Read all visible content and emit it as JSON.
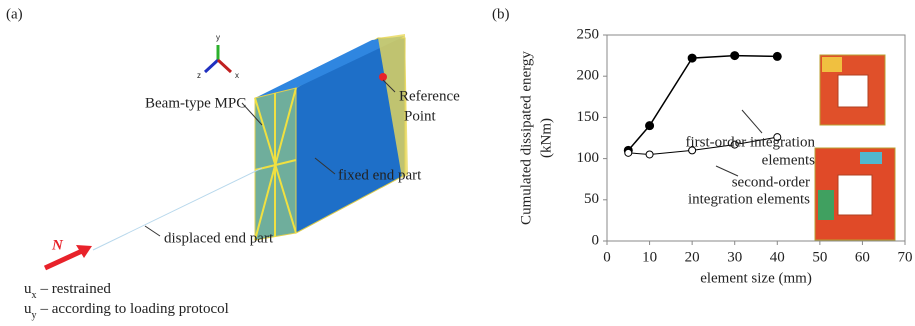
{
  "panel_a": {
    "label": "(a)",
    "triad": [
      "y",
      "z",
      "x"
    ],
    "mpc": "Beam-type MPC",
    "reference": [
      "Reference",
      "Point"
    ],
    "fixed": "fixed end part",
    "displaced": "displaced end part",
    "force": "N",
    "conditions": [
      {
        "symbol": "u",
        "sub": "x",
        "text": "– restrained"
      },
      {
        "symbol": "u",
        "sub": "y",
        "text": "– according to loading protocol"
      }
    ]
  },
  "chart_data": {
    "type": "line",
    "label": "(b)",
    "xlabel": "element size (mm)",
    "ylabel": [
      "Cumulated dissipated energy",
      "(kNm)"
    ],
    "x": [
      5,
      10,
      20,
      30,
      40
    ],
    "series": [
      {
        "color": "#000000",
        "marker": "filled",
        "values": [
          110,
          140,
          222,
          225,
          224
        ]
      },
      {
        "color": "#000000",
        "marker": "open",
        "values": [
          107,
          105,
          110,
          117,
          126
        ]
      }
    ],
    "annotations": [
      [
        "first-order  integration",
        "elements"
      ],
      [
        "second-order",
        "integration elements"
      ]
    ],
    "xlim": [
      0,
      70
    ],
    "xticks": [
      0,
      10,
      20,
      30,
      40,
      50,
      60,
      70
    ],
    "ylim": [
      0,
      250
    ],
    "yticks": [
      0,
      50,
      100,
      150,
      200,
      250
    ]
  }
}
